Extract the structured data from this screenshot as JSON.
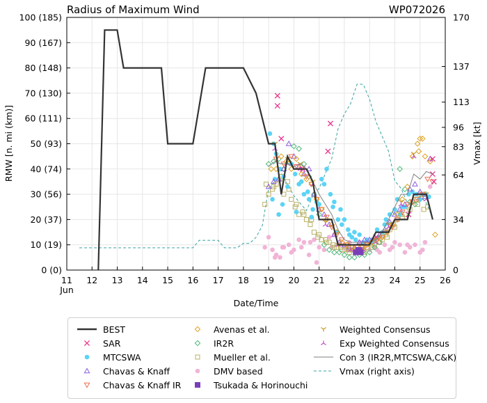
{
  "chart_data": {
    "type": "line",
    "title": "Radius of Maximum Wind",
    "storm_id": "WP072026",
    "xlabel": "Date/Time",
    "ylabel": "RMW [n. mi (km)]",
    "y2label": "Vmax [kt]",
    "x_month_label": "Jun",
    "xlim": [
      11,
      26
    ],
    "ylim": [
      0,
      100
    ],
    "y2lim": [
      0,
      170
    ],
    "x_ticks": [
      {
        "v": 11,
        "label": "11"
      },
      {
        "v": 12,
        "label": "12"
      },
      {
        "v": 13,
        "label": "13"
      },
      {
        "v": 14,
        "label": "14"
      },
      {
        "v": 15,
        "label": "15"
      },
      {
        "v": 16,
        "label": "16"
      },
      {
        "v": 17,
        "label": "17"
      },
      {
        "v": 18,
        "label": "18"
      },
      {
        "v": 19,
        "label": "19"
      },
      {
        "v": 20,
        "label": "20"
      },
      {
        "v": 21,
        "label": "21"
      },
      {
        "v": 22,
        "label": "22"
      },
      {
        "v": 23,
        "label": "23"
      },
      {
        "v": 24,
        "label": "24"
      },
      {
        "v": 25,
        "label": "25"
      },
      {
        "v": 26,
        "label": "26"
      }
    ],
    "y_ticks": [
      {
        "v": 0,
        "label": "0 (0)"
      },
      {
        "v": 10,
        "label": "10 (19)"
      },
      {
        "v": 20,
        "label": "20 (37)"
      },
      {
        "v": 30,
        "label": "30 (56)"
      },
      {
        "v": 40,
        "label": "40 (74)"
      },
      {
        "v": 50,
        "label": "50 (93)"
      },
      {
        "v": 60,
        "label": "60 (111)"
      },
      {
        "v": 70,
        "label": "70 (130)"
      },
      {
        "v": 80,
        "label": "80 (148)"
      },
      {
        "v": 90,
        "label": "90 (167)"
      },
      {
        "v": 100,
        "label": "100 (185)"
      }
    ],
    "y2_ticks": [
      {
        "v": 0,
        "label": "0"
      },
      {
        "v": 34,
        "label": "34"
      },
      {
        "v": 64,
        "label": "64"
      },
      {
        "v": 83,
        "label": "83"
      },
      {
        "v": 96,
        "label": "96"
      },
      {
        "v": 113,
        "label": "113"
      },
      {
        "v": 137,
        "label": "137"
      },
      {
        "v": 170,
        "label": "170"
      }
    ],
    "grid": true,
    "legend_position": "bottom",
    "colors": {
      "best": "#333333",
      "sar": "#e8338a",
      "mtcswa": "#5bd3f5",
      "chavas": "#8a5ce0",
      "chavas_ir": "#ef6f4f",
      "avenas": "#e0a020",
      "ir2r": "#4db87a",
      "mueller": "#b8b064",
      "dmv": "#f0b4d6",
      "tsukada": "#7a3fb8",
      "weighted": "#c89a2a",
      "exp_weighted": "#c050c8",
      "con3": "#7f7f7f",
      "vmax": "#3aa0a0"
    },
    "legend": [
      {
        "key": "best",
        "label": "BEST",
        "marker": "line-thick"
      },
      {
        "key": "sar",
        "label": "SAR",
        "marker": "x"
      },
      {
        "key": "mtcswa",
        "label": "MTCSWA",
        "marker": "dot"
      },
      {
        "key": "chavas",
        "label": "Chavas & Knaff",
        "marker": "tri-up"
      },
      {
        "key": "chavas_ir",
        "label": "Chavas & Knaff IR",
        "marker": "tri-down"
      },
      {
        "key": "avenas",
        "label": "Avenas et al.",
        "marker": "diamond"
      },
      {
        "key": "ir2r",
        "label": "IR2R",
        "marker": "diamond"
      },
      {
        "key": "mueller",
        "label": "Mueller et al.",
        "marker": "square"
      },
      {
        "key": "dmv",
        "label": "DMV based",
        "marker": "dot"
      },
      {
        "key": "tsukada",
        "label": "Tsukada & Horinouchi",
        "marker": "square-filled"
      },
      {
        "key": "weighted",
        "label": "Weighted Consensus",
        "marker": "tri-y"
      },
      {
        "key": "exp_weighted",
        "label": "Exp Weighted Consensus",
        "marker": "tri-inv"
      },
      {
        "key": "con3",
        "label": "Con 3 (IR2R,MTCSWA,C&K)",
        "marker": "line-thin"
      },
      {
        "key": "vmax",
        "label": "Vmax (right axis)",
        "marker": "line-dash"
      }
    ],
    "series": {
      "best": {
        "x": [
          12.25,
          12.5,
          13.0,
          13.25,
          14.0,
          14.75,
          15.0,
          16.0,
          16.5,
          17.0,
          18.0,
          18.5,
          19.0,
          19.25,
          19.5,
          19.75,
          20.0,
          20.25,
          20.5,
          20.75,
          21.0,
          21.25,
          21.5,
          21.75,
          22.0,
          22.25,
          22.5,
          22.75,
          23.0,
          23.25,
          23.5,
          23.75,
          24.0,
          24.25,
          24.5,
          24.75,
          25.0,
          25.25,
          25.5
        ],
        "y": [
          0,
          95,
          95,
          80,
          80,
          80,
          50,
          50,
          80,
          80,
          80,
          70,
          50,
          50,
          30,
          45,
          40,
          40,
          40,
          35,
          20,
          20,
          20,
          10,
          10,
          10,
          10,
          10,
          10,
          15,
          15,
          15,
          20,
          20,
          20,
          30,
          30,
          30,
          20
        ]
      },
      "vmax": {
        "x": [
          11.5,
          12,
          13,
          14,
          15,
          16,
          16.25,
          16.75,
          17.0,
          17.25,
          17.75,
          18.0,
          18.25,
          18.5,
          18.75,
          19.0,
          19.5,
          20.0,
          20.25,
          20.5,
          20.75,
          21.0,
          21.25,
          21.5,
          21.75,
          22.0,
          22.25,
          22.5,
          22.75,
          23.0,
          23.25,
          23.5,
          23.75,
          24.0,
          24.25,
          24.5,
          24.75,
          25.0,
          25.25,
          25.5
        ],
        "y": [
          15,
          15,
          15,
          15,
          15,
          15,
          20,
          20,
          20,
          15,
          15,
          18,
          18,
          22,
          30,
          55,
          65,
          50,
          45,
          40,
          50,
          55,
          65,
          75,
          95,
          105,
          112,
          125,
          125,
          115,
          100,
          90,
          80,
          60,
          55,
          45,
          45,
          50,
          45,
          35
        ]
      },
      "con3": {
        "x": [
          19.0,
          19.25,
          19.5,
          19.75,
          20.0,
          20.25,
          20.5,
          20.75,
          21.0,
          21.25,
          21.5,
          21.75,
          22.0,
          22.25,
          22.5,
          22.75,
          23.0,
          23.25,
          23.5,
          23.75,
          24.0,
          24.25,
          24.5,
          24.75,
          25.0,
          25.25,
          25.5
        ],
        "y": [
          41,
          43,
          42,
          42,
          41,
          42,
          40,
          35,
          30,
          26,
          22,
          16,
          12,
          11,
          11,
          11,
          11,
          12,
          15,
          20,
          25,
          30,
          30,
          38,
          36,
          39,
          38
        ]
      },
      "sar": {
        "x": [
          19.35,
          19.35,
          21.45,
          21.35,
          25.5,
          25.55,
          24.55,
          25.5,
          20.35,
          22.6,
          23.25,
          19.5
        ],
        "y": [
          69,
          65,
          58,
          47,
          38,
          35,
          22,
          44,
          40,
          8,
          13,
          52
        ]
      },
      "mtcswa": {
        "x": [
          19.05,
          19.2,
          19.3,
          19.45,
          19.6,
          19.75,
          19.9,
          20.05,
          20.2,
          20.4,
          20.6,
          20.75,
          20.9,
          21.0,
          21.1,
          21.3,
          21.45,
          21.6,
          21.75,
          21.85,
          22.0,
          22.15,
          22.3,
          22.45,
          22.6,
          22.75,
          22.9,
          23.05,
          23.2,
          23.35,
          23.5,
          23.65,
          23.8,
          24.0,
          24.2,
          24.4,
          24.55,
          24.7,
          24.85,
          25.0,
          25.2,
          25.35,
          19.15,
          19.4,
          19.55,
          20.3,
          20.55,
          21.2,
          21.55,
          21.9,
          22.4,
          23.1,
          23.6,
          24.3,
          25.1,
          19.25,
          20.1,
          20.7,
          21.7,
          22.2,
          23.3,
          24.1
        ],
        "y": [
          54,
          50,
          46,
          40,
          37,
          33,
          42,
          38,
          34,
          30,
          28,
          24,
          27,
          26,
          36,
          40,
          30,
          27,
          20,
          24,
          20,
          16,
          13,
          12,
          14,
          11,
          12,
          11,
          12,
          13,
          15,
          20,
          22,
          24,
          22,
          25,
          30,
          31,
          30,
          28,
          30,
          29,
          28,
          22,
          26,
          35,
          31,
          34,
          25,
          18,
          15,
          12,
          18,
          25,
          30,
          36,
          23,
          21,
          15,
          14,
          16,
          28
        ]
      },
      "chavas": {
        "x": [
          19.0,
          19.2,
          19.4,
          19.6,
          19.8,
          20.0,
          20.2,
          20.4,
          20.6,
          20.8,
          21.0,
          21.2,
          21.4,
          21.6,
          21.8,
          22.0,
          22.2,
          22.4,
          22.6,
          22.8,
          23.0,
          23.2,
          23.4,
          23.6,
          23.8,
          24.0,
          24.2,
          24.4,
          24.6,
          24.8,
          25.0,
          25.2,
          25.4
        ],
        "y": [
          33,
          35,
          36,
          40,
          50,
          45,
          41,
          38,
          40,
          30,
          24,
          22,
          18,
          14,
          11,
          10,
          9,
          9,
          11,
          12,
          12,
          13,
          14,
          16,
          19,
          22,
          24,
          26,
          32,
          34,
          31,
          29,
          44
        ]
      },
      "chavas_ir": {
        "x": [
          19.3,
          19.6,
          19.9,
          20.1,
          20.3,
          20.5,
          20.7,
          20.9,
          21.1,
          21.3,
          21.5,
          21.7,
          21.9,
          22.1,
          22.3,
          22.5,
          22.7,
          22.9,
          23.1,
          23.3,
          23.5,
          23.7,
          23.9,
          24.1,
          24.3,
          24.5,
          24.7,
          24.9,
          25.1,
          25.3,
          25.5
        ],
        "y": [
          44,
          42,
          45,
          41,
          40,
          37,
          34,
          28,
          24,
          21,
          17,
          14,
          12,
          10,
          9,
          9,
          9,
          10,
          11,
          12,
          13,
          15,
          17,
          20,
          23,
          26,
          27,
          28,
          30,
          36,
          35
        ]
      },
      "avenas": {
        "x": [
          19.1,
          19.3,
          19.5,
          19.7,
          19.9,
          20.1,
          20.3,
          20.5,
          20.7,
          20.9,
          21.1,
          21.3,
          21.5,
          21.7,
          21.9,
          22.1,
          22.3,
          22.5,
          22.7,
          22.9,
          23.1,
          23.3,
          23.5,
          23.7,
          23.9,
          24.1,
          24.3,
          24.5,
          24.7,
          24.9,
          25.0,
          25.2,
          25.4,
          25.6,
          24.95,
          25.1
        ],
        "y": [
          40,
          40,
          45,
          43,
          40,
          44,
          38,
          36,
          34,
          28,
          24,
          20,
          18,
          15,
          11,
          10,
          9,
          8,
          9,
          10,
          11,
          12,
          13,
          15,
          18,
          22,
          28,
          33,
          45,
          50,
          52,
          45,
          43,
          14,
          47,
          52
        ]
      },
      "ir2r": {
        "x": [
          19.0,
          19.2,
          19.4,
          19.6,
          19.8,
          20.0,
          20.2,
          20.4,
          20.6,
          20.8,
          21.0,
          21.2,
          21.4,
          21.6,
          21.8,
          22.0,
          22.2,
          22.4,
          22.6,
          22.8,
          23.0,
          23.2,
          23.4,
          23.6,
          23.8,
          24.0,
          24.2,
          24.4,
          24.6,
          24.8,
          25.0,
          25.2
        ],
        "y": [
          42,
          43,
          44,
          40,
          43,
          49,
          48,
          42,
          37,
          30,
          22,
          10,
          8,
          7,
          7,
          6,
          5,
          5,
          6,
          6,
          7,
          9,
          11,
          15,
          18,
          23,
          40,
          32,
          27,
          26,
          28,
          30
        ]
      },
      "mueller": {
        "x": [
          18.85,
          19.0,
          19.15,
          19.3,
          19.45,
          19.6,
          19.75,
          19.9,
          20.05,
          20.2,
          20.35,
          20.5,
          20.65,
          20.8,
          20.95,
          21.1,
          21.25,
          21.4,
          21.55,
          21.7,
          21.85,
          22.0,
          22.15,
          22.3,
          22.45,
          22.6,
          22.75,
          22.9,
          23.05,
          23.2,
          23.35,
          23.5,
          23.65,
          23.8,
          23.95,
          24.1,
          24.25,
          24.4,
          24.55,
          24.7,
          24.85,
          25.0,
          25.15,
          25.3,
          18.9,
          19.2,
          19.5,
          19.8,
          20.1,
          20.4,
          20.7,
          21.0,
          21.3,
          21.6,
          21.9,
          22.2,
          22.5,
          22.8,
          23.1,
          23.4,
          23.7,
          24.0,
          24.3,
          24.6,
          24.9,
          25.2
        ],
        "y": [
          26,
          30,
          32,
          34,
          36,
          30,
          35,
          28,
          25,
          22,
          23,
          20,
          18,
          15,
          13,
          12,
          12,
          11,
          10,
          9,
          9,
          8,
          8,
          8,
          8,
          8,
          8,
          9,
          10,
          10,
          11,
          12,
          14,
          16,
          18,
          20,
          22,
          22,
          25,
          27,
          28,
          30,
          24,
          25,
          34,
          33,
          37,
          32,
          26,
          22,
          20,
          14,
          11,
          9,
          8,
          7,
          7,
          7,
          9,
          11,
          13,
          17,
          21,
          24,
          26,
          30
        ]
      },
      "dmv": {
        "x": [
          18.85,
          19.0,
          19.15,
          19.3,
          19.45,
          19.6,
          19.8,
          20.0,
          20.2,
          20.4,
          20.6,
          20.8,
          21.0,
          21.2,
          21.4,
          21.6,
          21.8,
          22.0,
          22.2,
          22.4,
          22.6,
          22.8,
          23.0,
          23.2,
          23.4,
          23.6,
          23.8,
          24.0,
          24.2,
          24.4,
          24.6,
          24.8,
          25.0,
          25.2,
          25.4,
          19.25,
          19.55,
          19.9,
          20.3,
          20.65,
          20.9,
          21.5,
          22.1,
          22.7,
          23.3,
          23.9,
          24.5,
          25.1
        ],
        "y": [
          9,
          13,
          8,
          6,
          5,
          9,
          10,
          8,
          12,
          11,
          6,
          12,
          9,
          8,
          13,
          14,
          10,
          9,
          11,
          8,
          11,
          9,
          8,
          9,
          7,
          10,
          8,
          11,
          10,
          7,
          9,
          10,
          7,
          11,
          33,
          5,
          9,
          7,
          9,
          11,
          3,
          9,
          8,
          7,
          8,
          9,
          10,
          8
        ]
      },
      "tsukada": {
        "x": [
          22.45,
          22.55,
          22.6,
          22.65
        ],
        "y": [
          7,
          8,
          8,
          7
        ]
      },
      "weighted": {
        "x": [
          19.25,
          19.75,
          20.25,
          20.75,
          21.25,
          21.75,
          22.25,
          22.75,
          23.25,
          23.75,
          24.25,
          24.75,
          25.25
        ],
        "y": [
          50,
          44,
          42,
          35,
          19,
          10,
          8,
          8,
          12,
          18,
          27,
          46,
          30
        ]
      },
      "exp_weighted": {
        "x": [
          19.25,
          19.75,
          20.25,
          20.75,
          21.25,
          21.75,
          22.25,
          22.75,
          23.25,
          23.75,
          24.25,
          24.75,
          25.25
        ],
        "y": [
          48,
          42,
          40,
          34,
          18,
          10,
          8,
          8,
          11,
          17,
          26,
          45,
          28
        ]
      }
    }
  }
}
